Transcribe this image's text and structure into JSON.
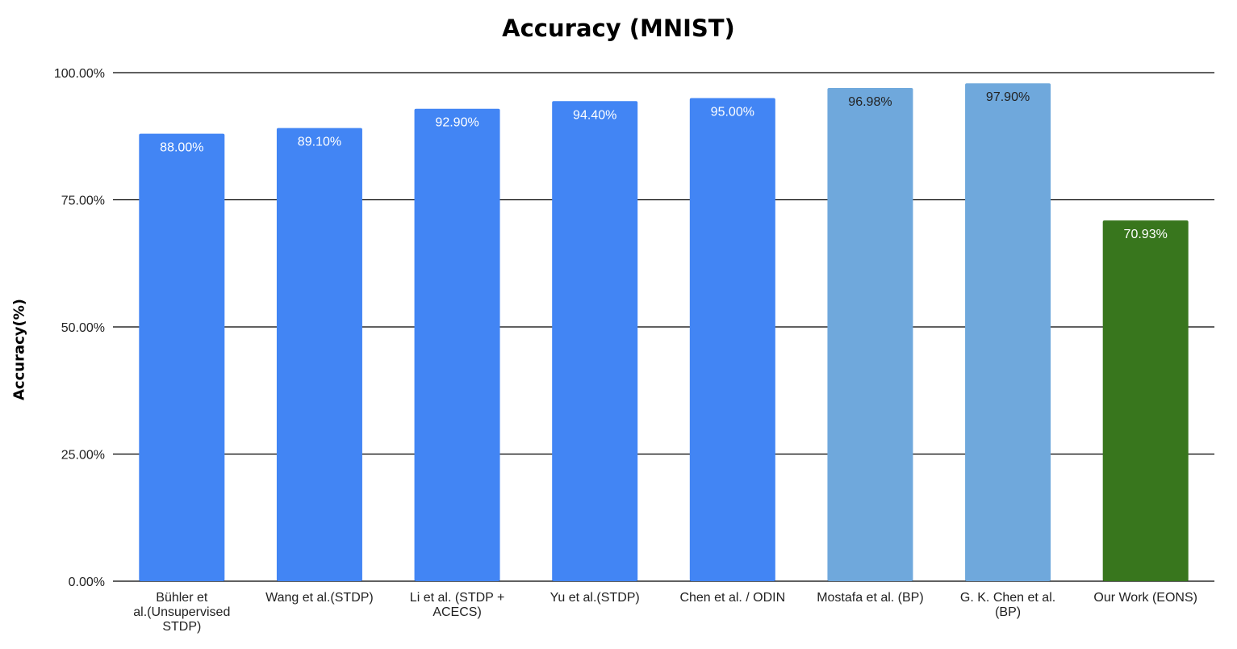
{
  "chart_data": {
    "type": "bar",
    "title": "Accuracy (MNIST)",
    "xlabel": "",
    "ylabel": "Accuracy(%)",
    "ylim": [
      0,
      100
    ],
    "yticks": [
      0,
      25,
      50,
      75,
      100
    ],
    "ytick_labels": [
      "0.00%",
      "25.00%",
      "50.00%",
      "75.00%",
      "100.00%"
    ],
    "grid": true,
    "legend": "none",
    "categories": [
      [
        "Bühler et",
        "al.(Unsupervised",
        "STDP)"
      ],
      [
        "Wang et al.(STDP)"
      ],
      [
        "Li et al. (STDP +",
        "ACECS)"
      ],
      [
        "Yu et al.(STDP)"
      ],
      [
        "Chen et al. / ODIN"
      ],
      [
        "Mostafa et al. (BP)"
      ],
      [
        "G. K. Chen et al.",
        "(BP)"
      ],
      [
        "Our Work (EONS)"
      ]
    ],
    "values": [
      88.0,
      89.1,
      92.9,
      94.4,
      95.0,
      96.98,
      97.9,
      70.93
    ],
    "value_labels": [
      "88.00%",
      "89.10%",
      "92.90%",
      "94.40%",
      "95.00%",
      "96.98%",
      "97.90%",
      "70.93%"
    ],
    "bar_colors": [
      "#4285f4",
      "#4285f4",
      "#4285f4",
      "#4285f4",
      "#4285f4",
      "#6fa8dc",
      "#6fa8dc",
      "#38761d"
    ],
    "label_colors": [
      "#ffffff",
      "#ffffff",
      "#ffffff",
      "#ffffff",
      "#ffffff",
      "#222222",
      "#222222",
      "#ffffff"
    ]
  }
}
